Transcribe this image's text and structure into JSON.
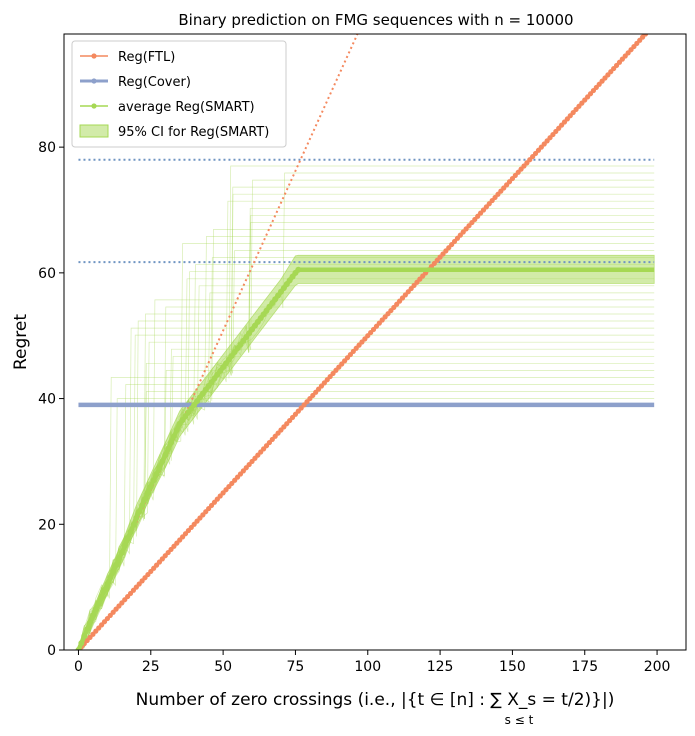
{
  "chart_data": {
    "type": "line",
    "title": "Binary prediction on FMG sequences with n = 10000",
    "xlabel": "Number of zero crossings (i.e., |{t ∈ [n] : ∑ X_s = t/2)}|)",
    "xlabel_sub": "s ≤ t",
    "ylabel": "Regret",
    "xlim": [
      -5,
      210
    ],
    "ylim": [
      0,
      98
    ],
    "x_ticks": [
      0,
      25,
      50,
      75,
      100,
      125,
      150,
      175,
      200
    ],
    "x_tick_labels": [
      "0",
      "25",
      "50",
      "75",
      "100",
      "125",
      "150",
      "175",
      "200"
    ],
    "y_ticks": [
      0,
      20,
      40,
      60,
      80
    ],
    "y_tick_labels": [
      "0",
      "20",
      "40",
      "60",
      "80"
    ],
    "legend": {
      "placement": "top-left",
      "entries": [
        "Reg(FTL)",
        "Reg(Cover)",
        "average Reg(SMART)",
        "95% CI for Reg(SMART)"
      ]
    },
    "colors": {
      "ftl": "#f4895f",
      "cover": "#8da0cb",
      "smart": "#a6d854",
      "ci": "#a6d854",
      "ref_line": "#6f94c2"
    },
    "series": [
      {
        "name": "Reg(FTL)",
        "slope": 0.5,
        "x_range": [
          0,
          198
        ],
        "y_range": [
          0,
          99
        ]
      },
      {
        "name": "Reg(FTL) extrapolation",
        "style": "dotted",
        "x_range": [
          0,
          123
        ],
        "y_range": [
          0,
          125
        ]
      },
      {
        "name": "Reg(Cover)",
        "value": 39,
        "x_range": [
          0,
          199
        ]
      },
      {
        "name": "average Reg(SMART)",
        "x": [
          0,
          5,
          10,
          15,
          20,
          25,
          30,
          35,
          40,
          45,
          50,
          55,
          60,
          65,
          70,
          75,
          76,
          199
        ],
        "y": [
          0,
          5.5,
          10.5,
          15.5,
          21,
          26,
          31,
          36,
          39,
          42,
          45,
          48,
          51,
          54,
          57,
          60,
          60.5,
          60.5
        ]
      }
    ],
    "ci_band": {
      "x": [
        0,
        5,
        10,
        15,
        20,
        25,
        30,
        35,
        40,
        45,
        50,
        55,
        60,
        65,
        70,
        75,
        76,
        199
      ],
      "lower": [
        0,
        4.5,
        9,
        14,
        19.5,
        24.5,
        29,
        34,
        37,
        40,
        43,
        46,
        49,
        52,
        55,
        58,
        58.3,
        58.3
      ],
      "upper": [
        0,
        6.5,
        12,
        17,
        23,
        28,
        33,
        38,
        41,
        44,
        47,
        50,
        53,
        56,
        59,
        62.7,
        62.8,
        62.8
      ]
    },
    "reference_lines": [
      {
        "name": "upper bound",
        "value": 78,
        "x_range": [
          0,
          199
        ]
      },
      {
        "name": "lower bound",
        "value": 61.7,
        "x_range": [
          0,
          199
        ]
      }
    ],
    "individual_runs": {
      "count": 34,
      "plateau_min": 40,
      "plateau_max": 77,
      "crossing_min": 10,
      "crossing_max": 77
    }
  }
}
